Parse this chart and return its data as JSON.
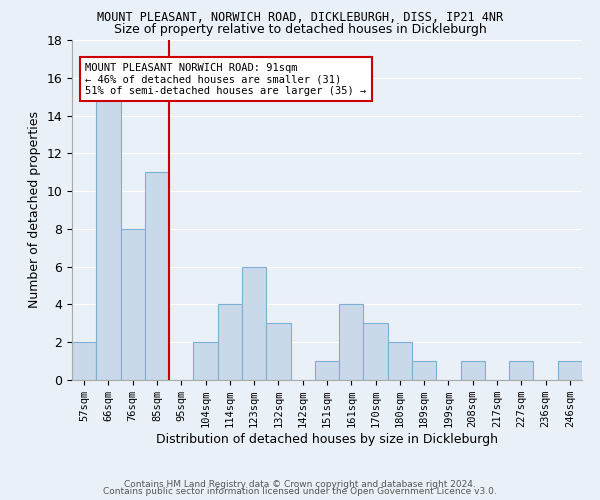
{
  "title": "MOUNT PLEASANT, NORWICH ROAD, DICKLEBURGH, DISS, IP21 4NR",
  "subtitle": "Size of property relative to detached houses in Dickleburgh",
  "xlabel": "Distribution of detached houses by size in Dickleburgh",
  "ylabel": "Number of detached properties",
  "footnote1": "Contains HM Land Registry data © Crown copyright and database right 2024.",
  "footnote2": "Contains public sector information licensed under the Open Government Licence v3.0.",
  "categories": [
    "57sqm",
    "66sqm",
    "76sqm",
    "85sqm",
    "95sqm",
    "104sqm",
    "114sqm",
    "123sqm",
    "132sqm",
    "142sqm",
    "151sqm",
    "161sqm",
    "170sqm",
    "180sqm",
    "189sqm",
    "199sqm",
    "208sqm",
    "217sqm",
    "227sqm",
    "236sqm",
    "246sqm"
  ],
  "values": [
    2,
    15,
    8,
    11,
    0,
    2,
    4,
    6,
    3,
    0,
    1,
    4,
    3,
    2,
    1,
    0,
    1,
    0,
    1,
    0,
    1
  ],
  "bar_color": "#c9d9ea",
  "bar_edge_color": "#7bafd4",
  "bg_color": "#eaf0f8",
  "grid_color": "#ffffff",
  "annotation_text": "MOUNT PLEASANT NORWICH ROAD: 91sqm\n← 46% of detached houses are smaller (31)\n51% of semi-detached houses are larger (35) →",
  "annotation_box_color": "#ffffff",
  "annotation_box_edge": "#cc0000",
  "red_line_color": "#cc0000",
  "ylim": [
    0,
    18
  ],
  "yticks": [
    0,
    2,
    4,
    6,
    8,
    10,
    12,
    14,
    16,
    18
  ]
}
